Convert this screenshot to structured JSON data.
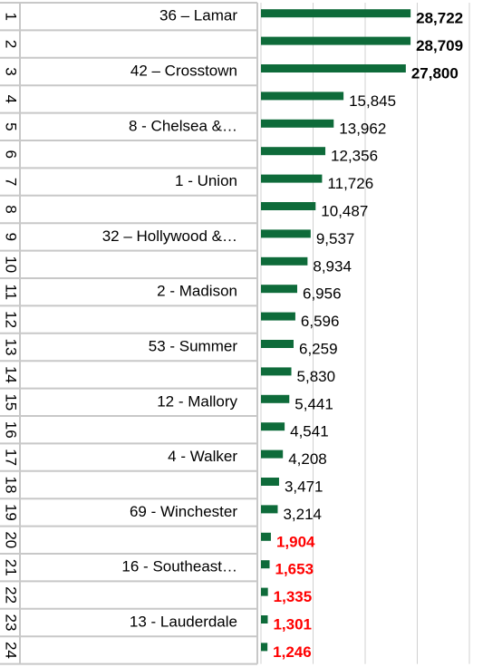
{
  "chart_data": {
    "type": "bar",
    "orientation": "horizontal",
    "ranks": [
      1,
      2,
      3,
      4,
      5,
      6,
      7,
      8,
      9,
      10,
      11,
      12,
      13,
      14,
      15,
      16,
      17,
      18,
      19,
      20,
      21,
      22,
      23,
      24
    ],
    "categories": [
      "36 – Lamar",
      null,
      "42 – Crosstown",
      null,
      "8 - Chelsea &…",
      null,
      "1 - Union",
      null,
      "32 – Hollywood &…",
      null,
      "2 - Madison",
      null,
      "53 - Summer",
      null,
      "12 - Mallory",
      null,
      "4 - Walker",
      null,
      "69 - Winchester",
      null,
      "16 - Southeast…",
      null,
      "13 - Lauderdale",
      null
    ],
    "values": [
      28722,
      28709,
      27800,
      15845,
      13962,
      12356,
      11726,
      10487,
      9537,
      8934,
      6956,
      6596,
      6259,
      5830,
      5441,
      4541,
      4208,
      3471,
      3214,
      1904,
      1653,
      1335,
      1301,
      1246
    ],
    "value_labels": [
      "28,722",
      "28,709",
      "27,800",
      "15,845",
      "13,962",
      "12,356",
      "11,726",
      "10,487",
      "9,537",
      "8,934",
      "6,956",
      "6,596",
      "6,259",
      "5,830",
      "5,441",
      "4,541",
      "4,208",
      "3,471",
      "3,214",
      "1,904",
      "1,653",
      "1,335",
      "1,301",
      "1,246"
    ],
    "value_label_colors": [
      "#000000",
      "#000000",
      "#000000",
      "#000000",
      "#000000",
      "#000000",
      "#000000",
      "#000000",
      "#000000",
      "#000000",
      "#000000",
      "#000000",
      "#000000",
      "#000000",
      "#000000",
      "#000000",
      "#000000",
      "#000000",
      "#000000",
      "#ff0000",
      "#ff0000",
      "#ff0000",
      "#ff0000",
      "#ff0000"
    ],
    "value_label_bold": [
      true,
      true,
      true,
      false,
      false,
      false,
      false,
      false,
      false,
      false,
      false,
      false,
      false,
      false,
      false,
      false,
      false,
      false,
      false,
      true,
      true,
      true,
      true,
      true
    ],
    "color": "#0e6b3a",
    "xlim": [
      0,
      40000
    ],
    "xticks": [
      0,
      10000,
      20000,
      30000,
      40000
    ],
    "grid": true
  }
}
